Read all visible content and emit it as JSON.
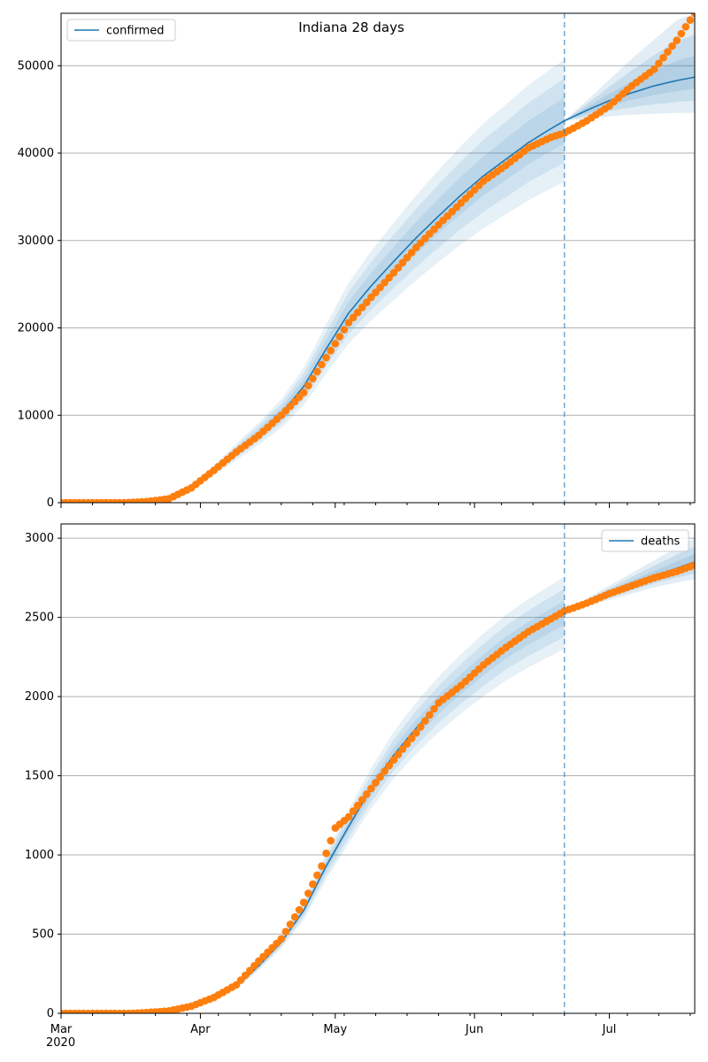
{
  "figure": {
    "title": "Indiana 28 days",
    "year_label": "2020"
  },
  "chart_data": [
    {
      "type": "line",
      "id": "confirmed",
      "series_name": "confirmed",
      "legend_position": "top-left",
      "grid": "y",
      "xlim": [
        "2020-03-01",
        "2020-07-20"
      ],
      "ylim": [
        0,
        56000
      ],
      "yticks": [
        0,
        10000,
        20000,
        30000,
        40000,
        50000
      ],
      "xticks": [
        {
          "date": "2020-03-01",
          "label": "Mar"
        },
        {
          "date": "2020-04-01",
          "label": "Apr"
        },
        {
          "date": "2020-05-01",
          "label": "May"
        },
        {
          "date": "2020-06-01",
          "label": "Jun"
        },
        {
          "date": "2020-07-01",
          "label": "Jul"
        }
      ],
      "forecast_start": "2020-06-21",
      "model_knots": [
        [
          "2020-03-01",
          0
        ],
        [
          "2020-03-15",
          0
        ],
        [
          "2020-03-20",
          150
        ],
        [
          "2020-03-25",
          650
        ],
        [
          "2020-03-30",
          1800
        ],
        [
          "2020-04-04",
          3700
        ],
        [
          "2020-04-09",
          5800
        ],
        [
          "2020-04-14",
          7900
        ],
        [
          "2020-04-19",
          10200
        ],
        [
          "2020-04-24",
          13300
        ],
        [
          "2020-04-29",
          17600
        ],
        [
          "2020-05-04",
          21700
        ],
        [
          "2020-05-09",
          24800
        ],
        [
          "2020-05-14",
          27600
        ],
        [
          "2020-05-19",
          30300
        ],
        [
          "2020-05-24",
          32800
        ],
        [
          "2020-05-29",
          35200
        ],
        [
          "2020-06-03",
          37400
        ],
        [
          "2020-06-08",
          39300
        ],
        [
          "2020-06-13",
          41200
        ],
        [
          "2020-06-18",
          42800
        ],
        [
          "2020-06-21",
          43700
        ],
        [
          "2020-06-26",
          44900
        ],
        [
          "2020-07-01",
          46000
        ],
        [
          "2020-07-06",
          46900
        ],
        [
          "2020-07-11",
          47700
        ],
        [
          "2020-07-16",
          48300
        ],
        [
          "2020-07-20",
          48700
        ]
      ],
      "band_halfwidth_fraction": [
        0.06,
        0.11,
        0.16
      ],
      "forecast_band_upper": [
        [
          "2020-06-21",
          43700
        ],
        [
          "2020-06-26",
          46000
        ],
        [
          "2020-07-01",
          48400
        ],
        [
          "2020-07-06",
          50800
        ],
        [
          "2020-07-11",
          53000
        ],
        [
          "2020-07-16",
          55200
        ],
        [
          "2020-07-20",
          56000
        ]
      ],
      "forecast_band_lower": [
        [
          "2020-06-21",
          43700
        ],
        [
          "2020-06-26",
          43900
        ],
        [
          "2020-07-01",
          44200
        ],
        [
          "2020-07-06",
          44400
        ],
        [
          "2020-07-11",
          44500
        ],
        [
          "2020-07-16",
          44600
        ],
        [
          "2020-07-20",
          44600
        ]
      ],
      "observed_knots": [
        [
          "2020-03-01",
          0
        ],
        [
          "2020-03-15",
          0
        ],
        [
          "2020-03-20",
          120
        ],
        [
          "2020-03-25",
          450
        ],
        [
          "2020-03-30",
          1700
        ],
        [
          "2020-04-04",
          3700
        ],
        [
          "2020-04-09",
          5800
        ],
        [
          "2020-04-14",
          7700
        ],
        [
          "2020-04-19",
          10000
        ],
        [
          "2020-04-24",
          12600
        ],
        [
          "2020-04-29",
          16600
        ],
        [
          "2020-05-04",
          20600
        ],
        [
          "2020-05-09",
          23500
        ],
        [
          "2020-05-14",
          26300
        ],
        [
          "2020-05-19",
          29200
        ],
        [
          "2020-05-24",
          31800
        ],
        [
          "2020-05-29",
          34300
        ],
        [
          "2020-06-03",
          36800
        ],
        [
          "2020-06-08",
          38600
        ],
        [
          "2020-06-13",
          40600
        ],
        [
          "2020-06-18",
          41800
        ],
        [
          "2020-06-21",
          42300
        ],
        [
          "2020-06-26",
          43700
        ],
        [
          "2020-07-01",
          45400
        ],
        [
          "2020-07-06",
          47700
        ],
        [
          "2020-07-11",
          49600
        ],
        [
          "2020-07-16",
          52900
        ],
        [
          "2020-07-20",
          56000
        ]
      ]
    },
    {
      "type": "line",
      "id": "deaths",
      "series_name": "deaths",
      "legend_position": "top-right",
      "grid": "y",
      "xlim": [
        "2020-03-01",
        "2020-07-20"
      ],
      "ylim": [
        0,
        3090
      ],
      "yticks": [
        0,
        500,
        1000,
        1500,
        2000,
        2500,
        3000
      ],
      "xticks": [
        {
          "date": "2020-03-01",
          "label": "Mar"
        },
        {
          "date": "2020-04-01",
          "label": "Apr"
        },
        {
          "date": "2020-05-01",
          "label": "May"
        },
        {
          "date": "2020-06-01",
          "label": "Jun"
        },
        {
          "date": "2020-07-01",
          "label": "Jul"
        }
      ],
      "forecast_start": "2020-06-21",
      "model_knots": [
        [
          "2020-03-01",
          0
        ],
        [
          "2020-03-20",
          0
        ],
        [
          "2020-03-25",
          10
        ],
        [
          "2020-03-30",
          30
        ],
        [
          "2020-04-04",
          95
        ],
        [
          "2020-04-09",
          170
        ],
        [
          "2020-04-14",
          300
        ],
        [
          "2020-04-19",
          450
        ],
        [
          "2020-04-24",
          650
        ],
        [
          "2020-04-29",
          930
        ],
        [
          "2020-05-04",
          1180
        ],
        [
          "2020-05-09",
          1420
        ],
        [
          "2020-05-14",
          1630
        ],
        [
          "2020-05-19",
          1800
        ],
        [
          "2020-05-24",
          1950
        ],
        [
          "2020-05-29",
          2080
        ],
        [
          "2020-06-03",
          2200
        ],
        [
          "2020-06-08",
          2310
        ],
        [
          "2020-06-13",
          2400
        ],
        [
          "2020-06-18",
          2480
        ],
        [
          "2020-06-21",
          2530
        ],
        [
          "2020-06-26",
          2590
        ],
        [
          "2020-07-01",
          2650
        ],
        [
          "2020-07-06",
          2710
        ],
        [
          "2020-07-11",
          2760
        ],
        [
          "2020-07-16",
          2810
        ],
        [
          "2020-07-20",
          2850
        ]
      ],
      "band_halfwidth_fraction": [
        0.03,
        0.06,
        0.09
      ],
      "forecast_band_upper": [
        [
          "2020-06-21",
          2530
        ],
        [
          "2020-06-26",
          2620
        ],
        [
          "2020-07-01",
          2700
        ],
        [
          "2020-07-06",
          2780
        ],
        [
          "2020-07-11",
          2860
        ],
        [
          "2020-07-16",
          2940
        ],
        [
          "2020-07-20",
          3000
        ]
      ],
      "forecast_band_lower": [
        [
          "2020-06-21",
          2530
        ],
        [
          "2020-06-26",
          2570
        ],
        [
          "2020-07-01",
          2610
        ],
        [
          "2020-07-06",
          2650
        ],
        [
          "2020-07-11",
          2690
        ],
        [
          "2020-07-16",
          2720
        ],
        [
          "2020-07-20",
          2740
        ]
      ],
      "observed_knots": [
        [
          "2020-03-01",
          0
        ],
        [
          "2020-03-17",
          0
        ],
        [
          "2020-03-20",
          5
        ],
        [
          "2020-03-25",
          15
        ],
        [
          "2020-03-30",
          45
        ],
        [
          "2020-04-04",
          100
        ],
        [
          "2020-04-09",
          180
        ],
        [
          "2020-04-14",
          330
        ],
        [
          "2020-04-19",
          470
        ],
        [
          "2020-04-24",
          700
        ],
        [
          "2020-04-28",
          930
        ],
        [
          "2020-05-01",
          1170
        ],
        [
          "2020-05-04",
          1240
        ],
        [
          "2020-05-09",
          1420
        ],
        [
          "2020-05-14",
          1600
        ],
        [
          "2020-05-19",
          1770
        ],
        [
          "2020-05-24",
          1960
        ],
        [
          "2020-05-29",
          2070
        ],
        [
          "2020-06-03",
          2200
        ],
        [
          "2020-06-08",
          2310
        ],
        [
          "2020-06-13",
          2410
        ],
        [
          "2020-06-18",
          2490
        ],
        [
          "2020-06-21",
          2540
        ],
        [
          "2020-06-26",
          2590
        ],
        [
          "2020-07-01",
          2650
        ],
        [
          "2020-07-06",
          2700
        ],
        [
          "2020-07-11",
          2750
        ],
        [
          "2020-07-16",
          2790
        ],
        [
          "2020-07-20",
          2830
        ]
      ]
    }
  ],
  "colors": {
    "model_line": "#1f77b4",
    "band": "#1f77b4",
    "observed": "#ff7f0e",
    "grid": "#b0b0b0",
    "forecast_marker": "#1f77b4",
    "axis": "#000000"
  }
}
